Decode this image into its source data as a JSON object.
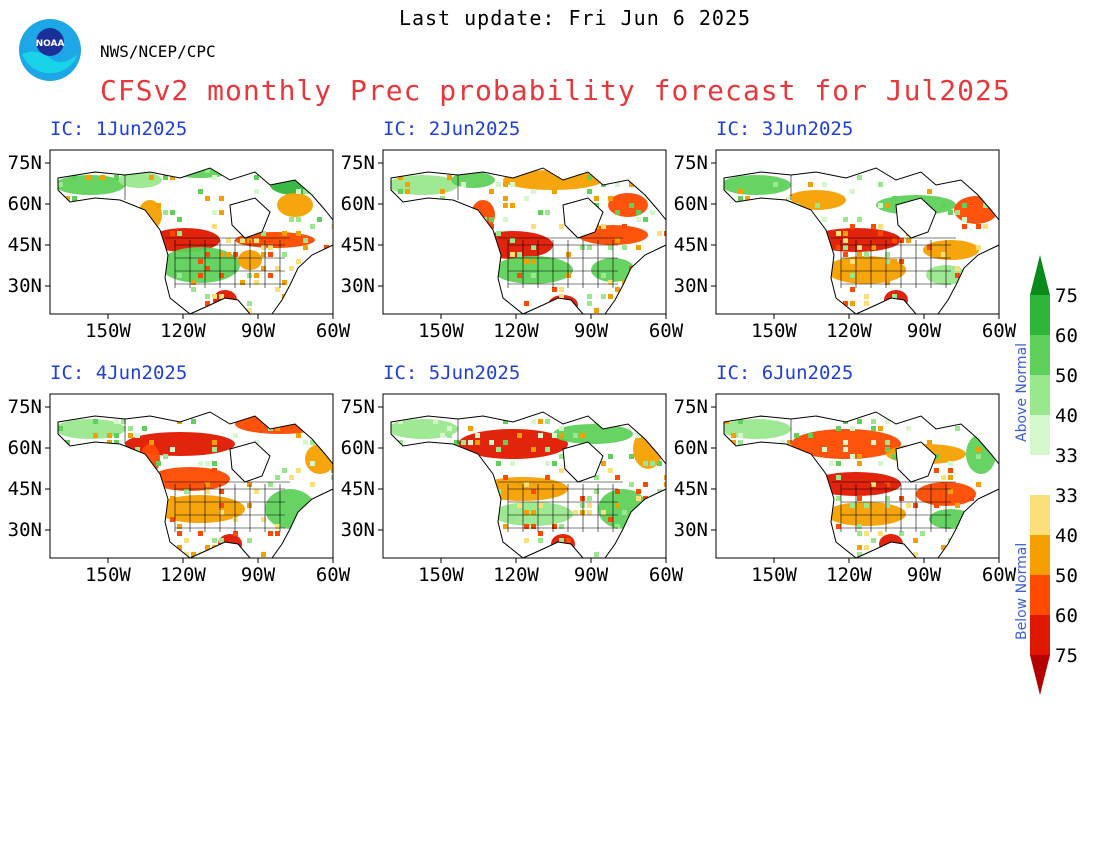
{
  "header": {
    "last_update": "Last update: Fri Jun 6 2025",
    "org": "NWS/NCEP/CPC",
    "title": "CFSv2 monthly Prec probability forecast for Jul2025",
    "logo_text": "NOAA"
  },
  "panels": [
    {
      "label": "IC: 1Jun2025"
    },
    {
      "label": "IC: 2Jun2025"
    },
    {
      "label": "IC: 3Jun2025"
    },
    {
      "label": "IC: 4Jun2025"
    },
    {
      "label": "IC: 5Jun2025"
    },
    {
      "label": "IC: 6Jun2025"
    }
  ],
  "axes": {
    "lat_labels": [
      "75N",
      "60N",
      "45N",
      "30N"
    ],
    "lon_labels": [
      "150W",
      "120W",
      "90W",
      "60W"
    ]
  },
  "colorbar": {
    "above_label": "Above Normal",
    "below_label": "Below Normal",
    "above_levels": [
      "75",
      "60",
      "50",
      "40",
      "33"
    ],
    "below_levels": [
      "33",
      "40",
      "50",
      "60",
      "75"
    ],
    "above_colors": [
      "#0b8a1a",
      "#2fb53a",
      "#5fd15a",
      "#9ae88e",
      "#d4f7cc"
    ],
    "below_colors": [
      "#fbe07a",
      "#f5a000",
      "#ff4a00",
      "#e01800",
      "#b50000"
    ]
  }
}
